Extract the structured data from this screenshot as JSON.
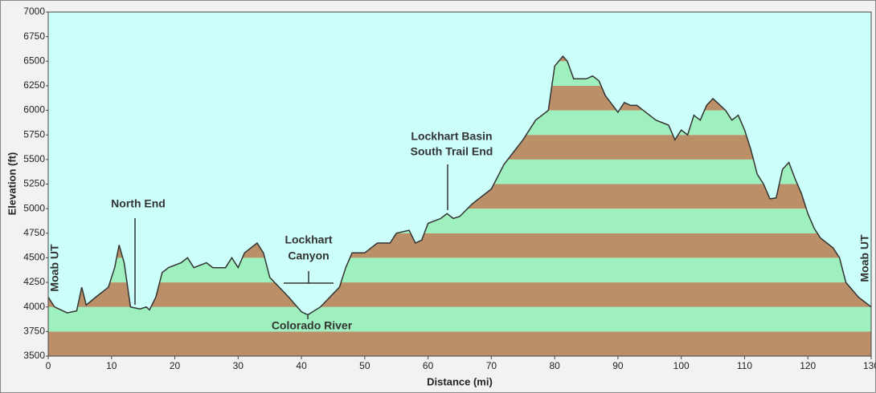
{
  "chart_data": {
    "type": "area",
    "x_label": "Distance   (mi)",
    "y_label": "Elevation (ft)",
    "x": [
      0,
      1,
      3,
      4.5,
      5.3,
      6,
      7.5,
      9.5,
      10.5,
      11.2,
      12,
      13,
      14.5,
      15.5,
      16,
      17,
      18,
      19,
      21,
      22,
      23,
      25,
      26,
      28,
      29,
      30,
      31,
      33,
      34,
      35,
      38,
      40,
      41,
      43,
      46,
      47,
      48,
      50,
      52,
      54,
      55,
      57,
      58,
      59,
      60,
      62,
      63,
      64,
      65,
      67,
      70,
      72,
      75,
      77,
      79,
      80,
      81.3,
      82,
      83,
      85,
      86,
      87,
      88,
      90,
      91,
      92,
      93,
      94,
      96,
      98,
      99,
      100,
      101,
      102,
      103,
      104,
      105,
      107,
      108,
      109,
      110,
      111,
      112,
      113,
      114,
      115,
      116,
      117,
      118,
      119,
      120,
      121,
      122,
      124,
      125,
      126,
      128,
      130
    ],
    "y": [
      4100,
      4000,
      3940,
      3960,
      4200,
      4020,
      4100,
      4200,
      4400,
      4630,
      4450,
      4000,
      3980,
      4000,
      3970,
      4100,
      4350,
      4400,
      4450,
      4500,
      4400,
      4450,
      4400,
      4400,
      4500,
      4400,
      4550,
      4650,
      4550,
      4300,
      4100,
      3950,
      3920,
      4000,
      4200,
      4400,
      4550,
      4550,
      4650,
      4650,
      4750,
      4780,
      4650,
      4680,
      4850,
      4900,
      4950,
      4900,
      4920,
      5050,
      5200,
      5450,
      5700,
      5900,
      6000,
      6450,
      6550,
      6500,
      6320,
      6320,
      6350,
      6300,
      6150,
      5980,
      6080,
      6050,
      6050,
      6000,
      5900,
      5850,
      5700,
      5800,
      5750,
      5950,
      5900,
      6050,
      6120,
      6000,
      5900,
      5950,
      5800,
      5600,
      5350,
      5250,
      5100,
      5110,
      5400,
      5470,
      5300,
      5150,
      4950,
      4800,
      4700,
      4600,
      4500,
      4250,
      4100,
      4000
    ],
    "xlim": [
      0,
      130
    ],
    "ylim": [
      3500,
      7000
    ],
    "xticks": [
      0,
      10,
      20,
      30,
      40,
      50,
      60,
      70,
      80,
      90,
      100,
      110,
      120,
      130
    ],
    "yticks": [
      3500,
      3750,
      4000,
      4250,
      4500,
      4750,
      5000,
      5250,
      5500,
      5750,
      6000,
      6250,
      6500,
      6750,
      7000
    ],
    "band_colors": [
      "#bb9068",
      "#9ef0be"
    ],
    "line_color": "#333333",
    "background": "#ccfffa",
    "annotations": {
      "start": "Moab UT",
      "end": "Moab UT",
      "north_end": "North End",
      "canyon": [
        "Lockhart",
        "Canyon"
      ],
      "river": "Colorado River",
      "basin": [
        "Lockhart Basin",
        "South Trail End"
      ]
    }
  }
}
